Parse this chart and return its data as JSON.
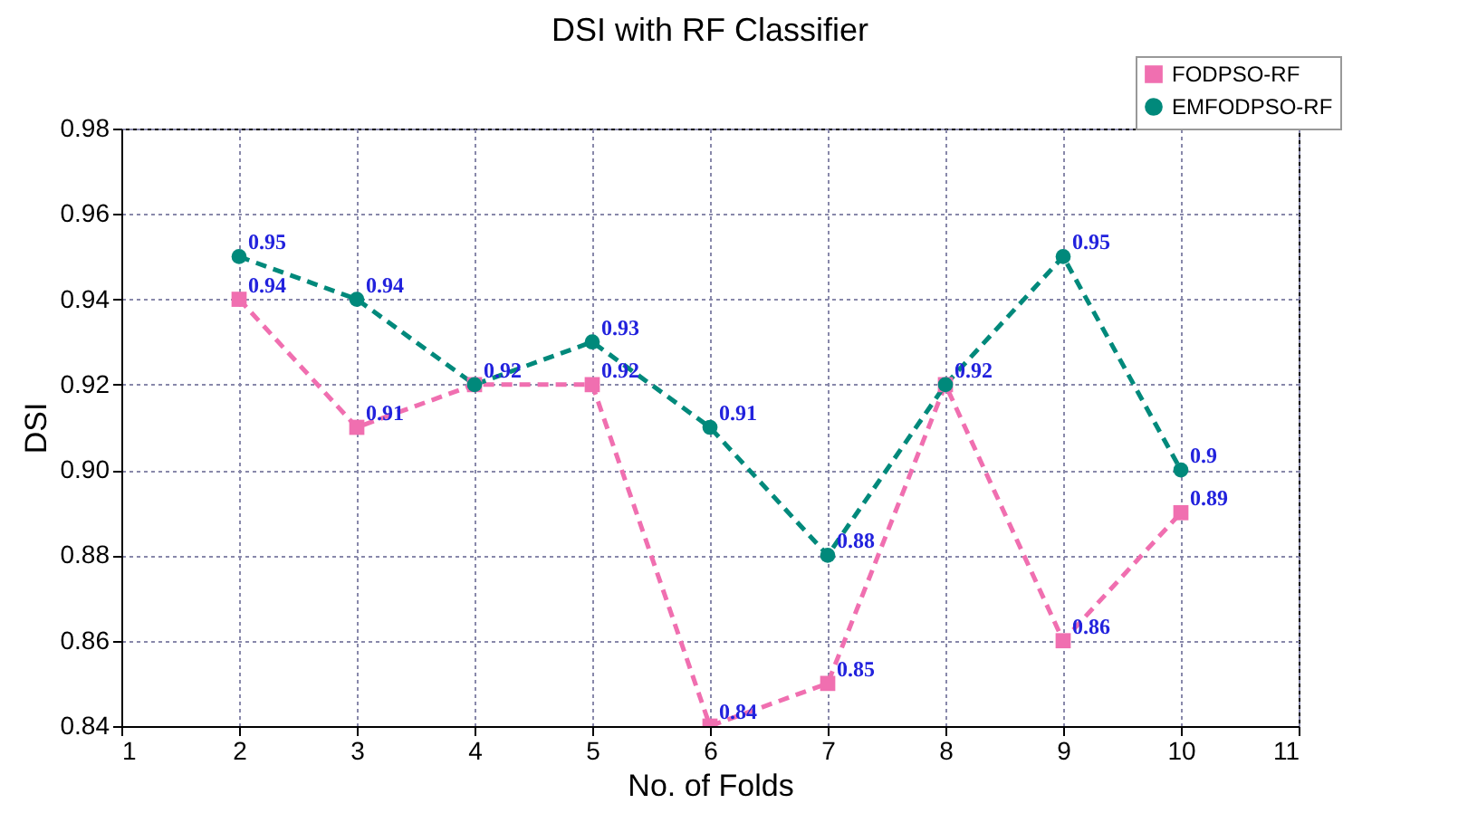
{
  "chart_data": {
    "type": "line",
    "title": "DSI with RF Classifier",
    "xlabel": "No. of Folds",
    "ylabel": "DSI",
    "x": [
      2,
      3,
      4,
      5,
      6,
      7,
      8,
      9,
      10
    ],
    "series": [
      {
        "name": "FODPSO-RF",
        "color": "#f06fb0",
        "marker": "square",
        "values": [
          0.94,
          0.91,
          0.92,
          0.92,
          0.84,
          0.85,
          0.92,
          0.86,
          0.89
        ],
        "value_labels": [
          "0.94",
          "0.91",
          null,
          "0.92",
          "0.84",
          "0.85",
          null,
          "0.86",
          "0.89"
        ]
      },
      {
        "name": "EMFODPSO-RF",
        "color": "#00897b",
        "marker": "circle",
        "values": [
          0.95,
          0.94,
          0.92,
          0.93,
          0.91,
          0.88,
          0.92,
          0.95,
          0.9
        ],
        "value_labels": [
          "0.95",
          "0.94",
          "0.92",
          "0.93",
          "0.91",
          "0.88",
          "0.92",
          "0.95",
          "0.9"
        ]
      }
    ],
    "xlim": [
      1,
      11
    ],
    "xticks": [
      1,
      2,
      3,
      4,
      5,
      6,
      7,
      8,
      9,
      10,
      11
    ],
    "ylim": [
      0.84,
      0.98
    ],
    "yticks": [
      0.84,
      0.86,
      0.88,
      {
        "value": 0.9,
        "label": "0.90"
      },
      0.92,
      0.94,
      0.96,
      0.98
    ],
    "grid": true,
    "legend": "top right",
    "line_style": "dashed"
  }
}
